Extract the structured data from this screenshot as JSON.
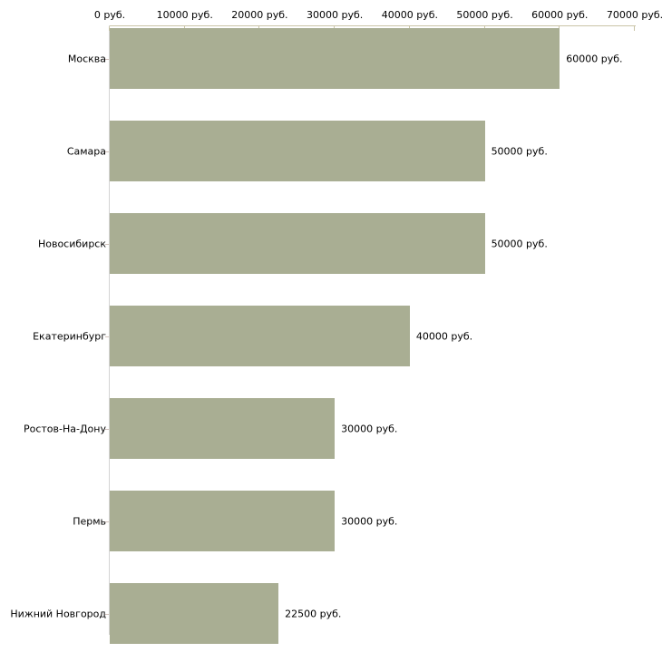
{
  "chart_data": {
    "type": "bar",
    "orientation": "horizontal",
    "title": "",
    "xlabel": "",
    "ylabel": "",
    "unit": "руб.",
    "categories": [
      "Москва",
      "Самара",
      "Новосибирск",
      "Екатеринбург",
      "Ростов-На-Дону",
      "Пермь",
      "Нижний Новгород"
    ],
    "values": [
      60000,
      50000,
      50000,
      40000,
      30000,
      30000,
      22500
    ],
    "value_labels": [
      "60000 руб.",
      "50000 руб.",
      "50000 руб.",
      "40000 руб.",
      "30000 руб.",
      "30000 руб.",
      "22500 руб."
    ],
    "x_ticks": [
      0,
      10000,
      20000,
      30000,
      40000,
      50000,
      60000,
      70000
    ],
    "x_tick_labels": [
      "0 руб.",
      "10000 руб.",
      "20000 руб.",
      "30000 руб.",
      "40000 руб.",
      "50000 руб.",
      "60000 руб.",
      "70000 руб."
    ],
    "xlim": [
      0,
      70000
    ],
    "grid": false,
    "legend": null,
    "colors": {
      "bar": "#a9ae93",
      "top_axis": "#c9c4a7",
      "left_axis": "#d3d3d3",
      "category_tick": "#d2c2bc",
      "text": "#000000",
      "background": "#ffffff"
    }
  }
}
